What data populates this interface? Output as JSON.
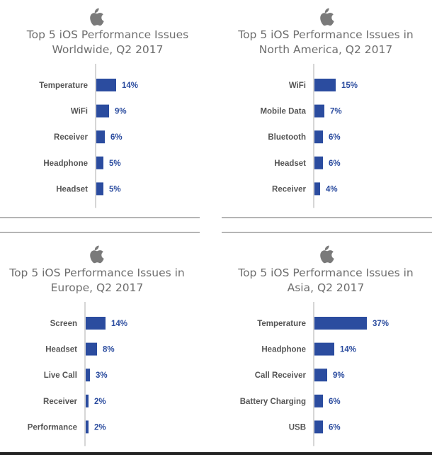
{
  "colors": {
    "bar": "#2b4c9f",
    "value_label": "#2b4c9f",
    "category_label": "#555555",
    "axis": "#c8c8c8",
    "title": "#6e6e6e",
    "logo": "#7a7a7a"
  },
  "logo_icon": "apple-logo-icon",
  "panels": [
    {
      "title_lines": [
        "Top 5 iOS Performance Issues",
        "Worldwide, Q2 2017"
      ],
      "chart_data": {
        "type": "bar",
        "orientation": "horizontal",
        "categories": [
          "Temperature",
          "WiFi",
          "Receiver",
          "Headphone",
          "Headset"
        ],
        "values": [
          14,
          9,
          6,
          5,
          5
        ],
        "value_labels": [
          "14%",
          "9%",
          "6%",
          "5%",
          "5%"
        ],
        "unit": "%",
        "title": "Top 5 iOS Performance Issues Worldwide, Q2 2017"
      }
    },
    {
      "title_lines": [
        "Top 5 iOS Performance Issues in",
        "North America, Q2 2017"
      ],
      "chart_data": {
        "type": "bar",
        "orientation": "horizontal",
        "categories": [
          "WiFi",
          "Mobile Data",
          "Bluetooth",
          "Headset",
          "Receiver"
        ],
        "values": [
          15,
          7,
          6,
          6,
          4
        ],
        "value_labels": [
          "15%",
          "7%",
          "6%",
          "6%",
          "4%"
        ],
        "unit": "%",
        "title": "Top 5 iOS Performance Issues in North America, Q2 2017"
      }
    },
    {
      "title_lines": [
        "Top 5 iOS Performance Issues in",
        "Europe, Q2 2017"
      ],
      "chart_data": {
        "type": "bar",
        "orientation": "horizontal",
        "categories": [
          "Screen",
          "Headset",
          "Live Call",
          "Receiver",
          "Performance"
        ],
        "values": [
          14,
          8,
          3,
          2,
          2
        ],
        "value_labels": [
          "14%",
          "8%",
          "3%",
          "2%",
          "2%"
        ],
        "unit": "%",
        "title": "Top 5 iOS Performance Issues in Europe, Q2 2017"
      }
    },
    {
      "title_lines": [
        "Top 5 iOS Performance Issues in",
        "Asia, Q2 2017"
      ],
      "chart_data": {
        "type": "bar",
        "orientation": "horizontal",
        "categories": [
          "Temperature",
          "Headphone",
          "Call Receiver",
          "Battery Charging",
          "USB"
        ],
        "values": [
          37,
          14,
          9,
          6,
          6
        ],
        "value_labels": [
          "37%",
          "14%",
          "9%",
          "6%",
          "6%"
        ],
        "unit": "%",
        "title": "Top 5 iOS Performance Issues in Asia, Q2 2017"
      }
    }
  ]
}
